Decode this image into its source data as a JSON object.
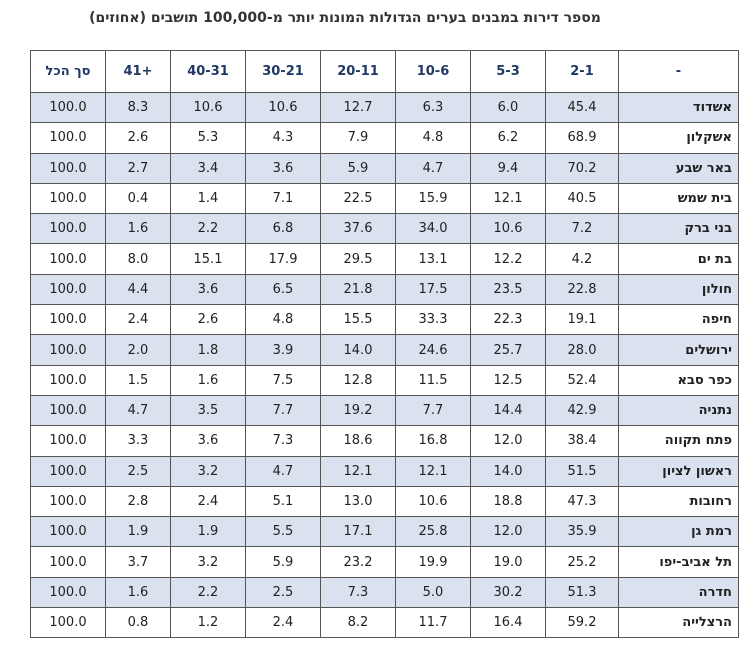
{
  "title": "מספר דירות במבנים בערים הגדולות המונות יותר מ-100,000 תושבים (אחוזים)",
  "table": {
    "header": [
      "-",
      "2-1",
      "5-3",
      "10-6",
      "20-11",
      "30-21",
      "40-31",
      "41+",
      "סך הכל"
    ],
    "rows": [
      [
        "אשדוד",
        "45.4",
        "6.0",
        "6.3",
        "12.7",
        "10.6",
        "10.6",
        "8.3",
        "100.0"
      ],
      [
        "אשקלון",
        "68.9",
        "6.2",
        "4.8",
        "7.9",
        "4.3",
        "5.3",
        "2.6",
        "100.0"
      ],
      [
        "באר שבע",
        "70.2",
        "9.4",
        "4.7",
        "5.9",
        "3.6",
        "3.4",
        "2.7",
        "100.0"
      ],
      [
        "בית שמש",
        "40.5",
        "12.1",
        "15.9",
        "22.5",
        "7.1",
        "1.4",
        "0.4",
        "100.0"
      ],
      [
        "בני ברק",
        "7.2",
        "10.6",
        "34.0",
        "37.6",
        "6.8",
        "2.2",
        "1.6",
        "100.0"
      ],
      [
        "בת ים",
        "4.2",
        "12.2",
        "13.1",
        "29.5",
        "17.9",
        "15.1",
        "8.0",
        "100.0"
      ],
      [
        "חולון",
        "22.8",
        "23.5",
        "17.5",
        "21.8",
        "6.5",
        "3.6",
        "4.4",
        "100.0"
      ],
      [
        "חיפה",
        "19.1",
        "22.3",
        "33.3",
        "15.5",
        "4.8",
        "2.6",
        "2.4",
        "100.0"
      ],
      [
        "ירושלים",
        "28.0",
        "25.7",
        "24.6",
        "14.0",
        "3.9",
        "1.8",
        "2.0",
        "100.0"
      ],
      [
        "כפר סבא",
        "52.4",
        "12.5",
        "11.5",
        "12.8",
        "7.5",
        "1.6",
        "1.5",
        "100.0"
      ],
      [
        "נתניה",
        "42.9",
        "14.4",
        "7.7",
        "19.2",
        "7.7",
        "3.5",
        "4.7",
        "100.0"
      ],
      [
        "פתח תקווה",
        "38.4",
        "12.0",
        "16.8",
        "18.6",
        "7.3",
        "3.6",
        "3.3",
        "100.0"
      ],
      [
        "ראשון לציון",
        "51.5",
        "14.0",
        "12.1",
        "12.1",
        "4.7",
        "3.2",
        "2.5",
        "100.0"
      ],
      [
        "רחובות",
        "47.3",
        "18.8",
        "10.6",
        "13.0",
        "5.1",
        "2.4",
        "2.8",
        "100.0"
      ],
      [
        "רמת גן",
        "35.9",
        "12.0",
        "25.8",
        "17.1",
        "5.5",
        "1.9",
        "1.9",
        "100.0"
      ],
      [
        "תל אביב-יפו",
        "25.2",
        "19.0",
        "19.9",
        "23.2",
        "5.9",
        "3.2",
        "3.7",
        "100.0"
      ],
      [
        "חדרה",
        "51.3",
        "30.2",
        "5.0",
        "7.3",
        "2.5",
        "2.2",
        "1.6",
        "100.0"
      ],
      [
        "הרצלייה",
        "59.2",
        "16.4",
        "11.7",
        "8.2",
        "2.4",
        "1.2",
        "0.8",
        "100.0"
      ]
    ]
  }
}
